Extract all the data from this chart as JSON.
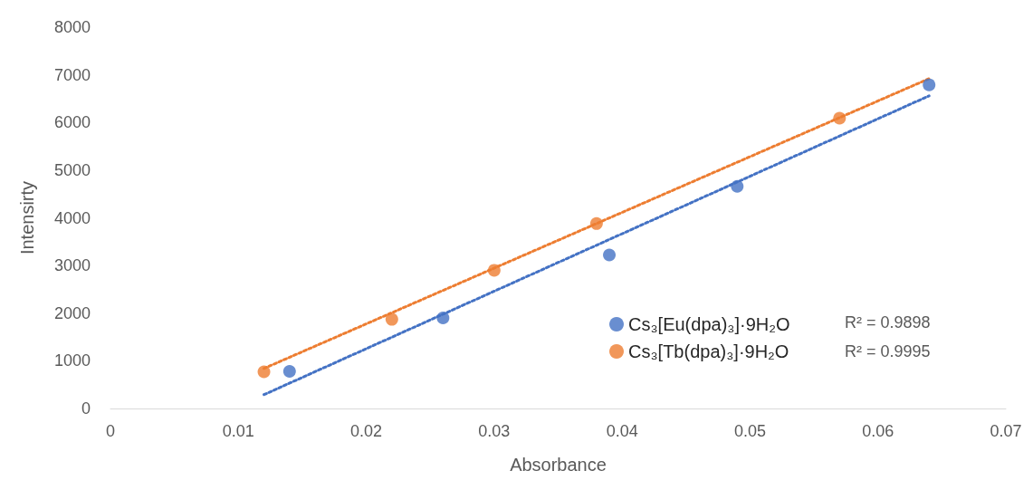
{
  "chart_data": {
    "type": "scatter",
    "xlabel": "Absorbance",
    "ylabel": "Intensirty",
    "xlim": [
      0,
      0.07
    ],
    "xticks": [
      0,
      0.01,
      0.02,
      0.03,
      0.04,
      0.05,
      0.06,
      0.07
    ],
    "ylim": [
      0,
      8000
    ],
    "yticks": [
      0,
      1000,
      2000,
      3000,
      4000,
      5000,
      6000,
      7000,
      8000
    ],
    "series": [
      {
        "name": "Cs₃[Eu(dpa)₃]·9H₂O",
        "color": "#4472c4",
        "x": [
          0.014,
          0.026,
          0.039,
          0.049,
          0.064
        ],
        "values": [
          780,
          1900,
          3220,
          4660,
          6790
        ]
      },
      {
        "name": "Cs₃[Tb(dpa)₃]·9H₂O",
        "color": "#ed7d31",
        "x": [
          0.012,
          0.022,
          0.03,
          0.038,
          0.057
        ],
        "values": [
          770,
          1870,
          2900,
          3880,
          6090
        ]
      },
      {
        "type": "line",
        "color": "#4472c4",
        "line_style": "dotted",
        "marker": "none",
        "x": [
          0.012,
          0.064
        ],
        "values": [
          290,
          6560
        ]
      },
      {
        "type": "line",
        "color": "#ed7d31",
        "line_style": "dotted",
        "marker": "none",
        "x": [
          0.012,
          0.064
        ],
        "values": [
          840,
          6920
        ]
      }
    ],
    "annotations": [
      "R² = 0.9898",
      "R² = 0.9995"
    ],
    "marker": "circle",
    "grid": false,
    "legend": "right"
  }
}
